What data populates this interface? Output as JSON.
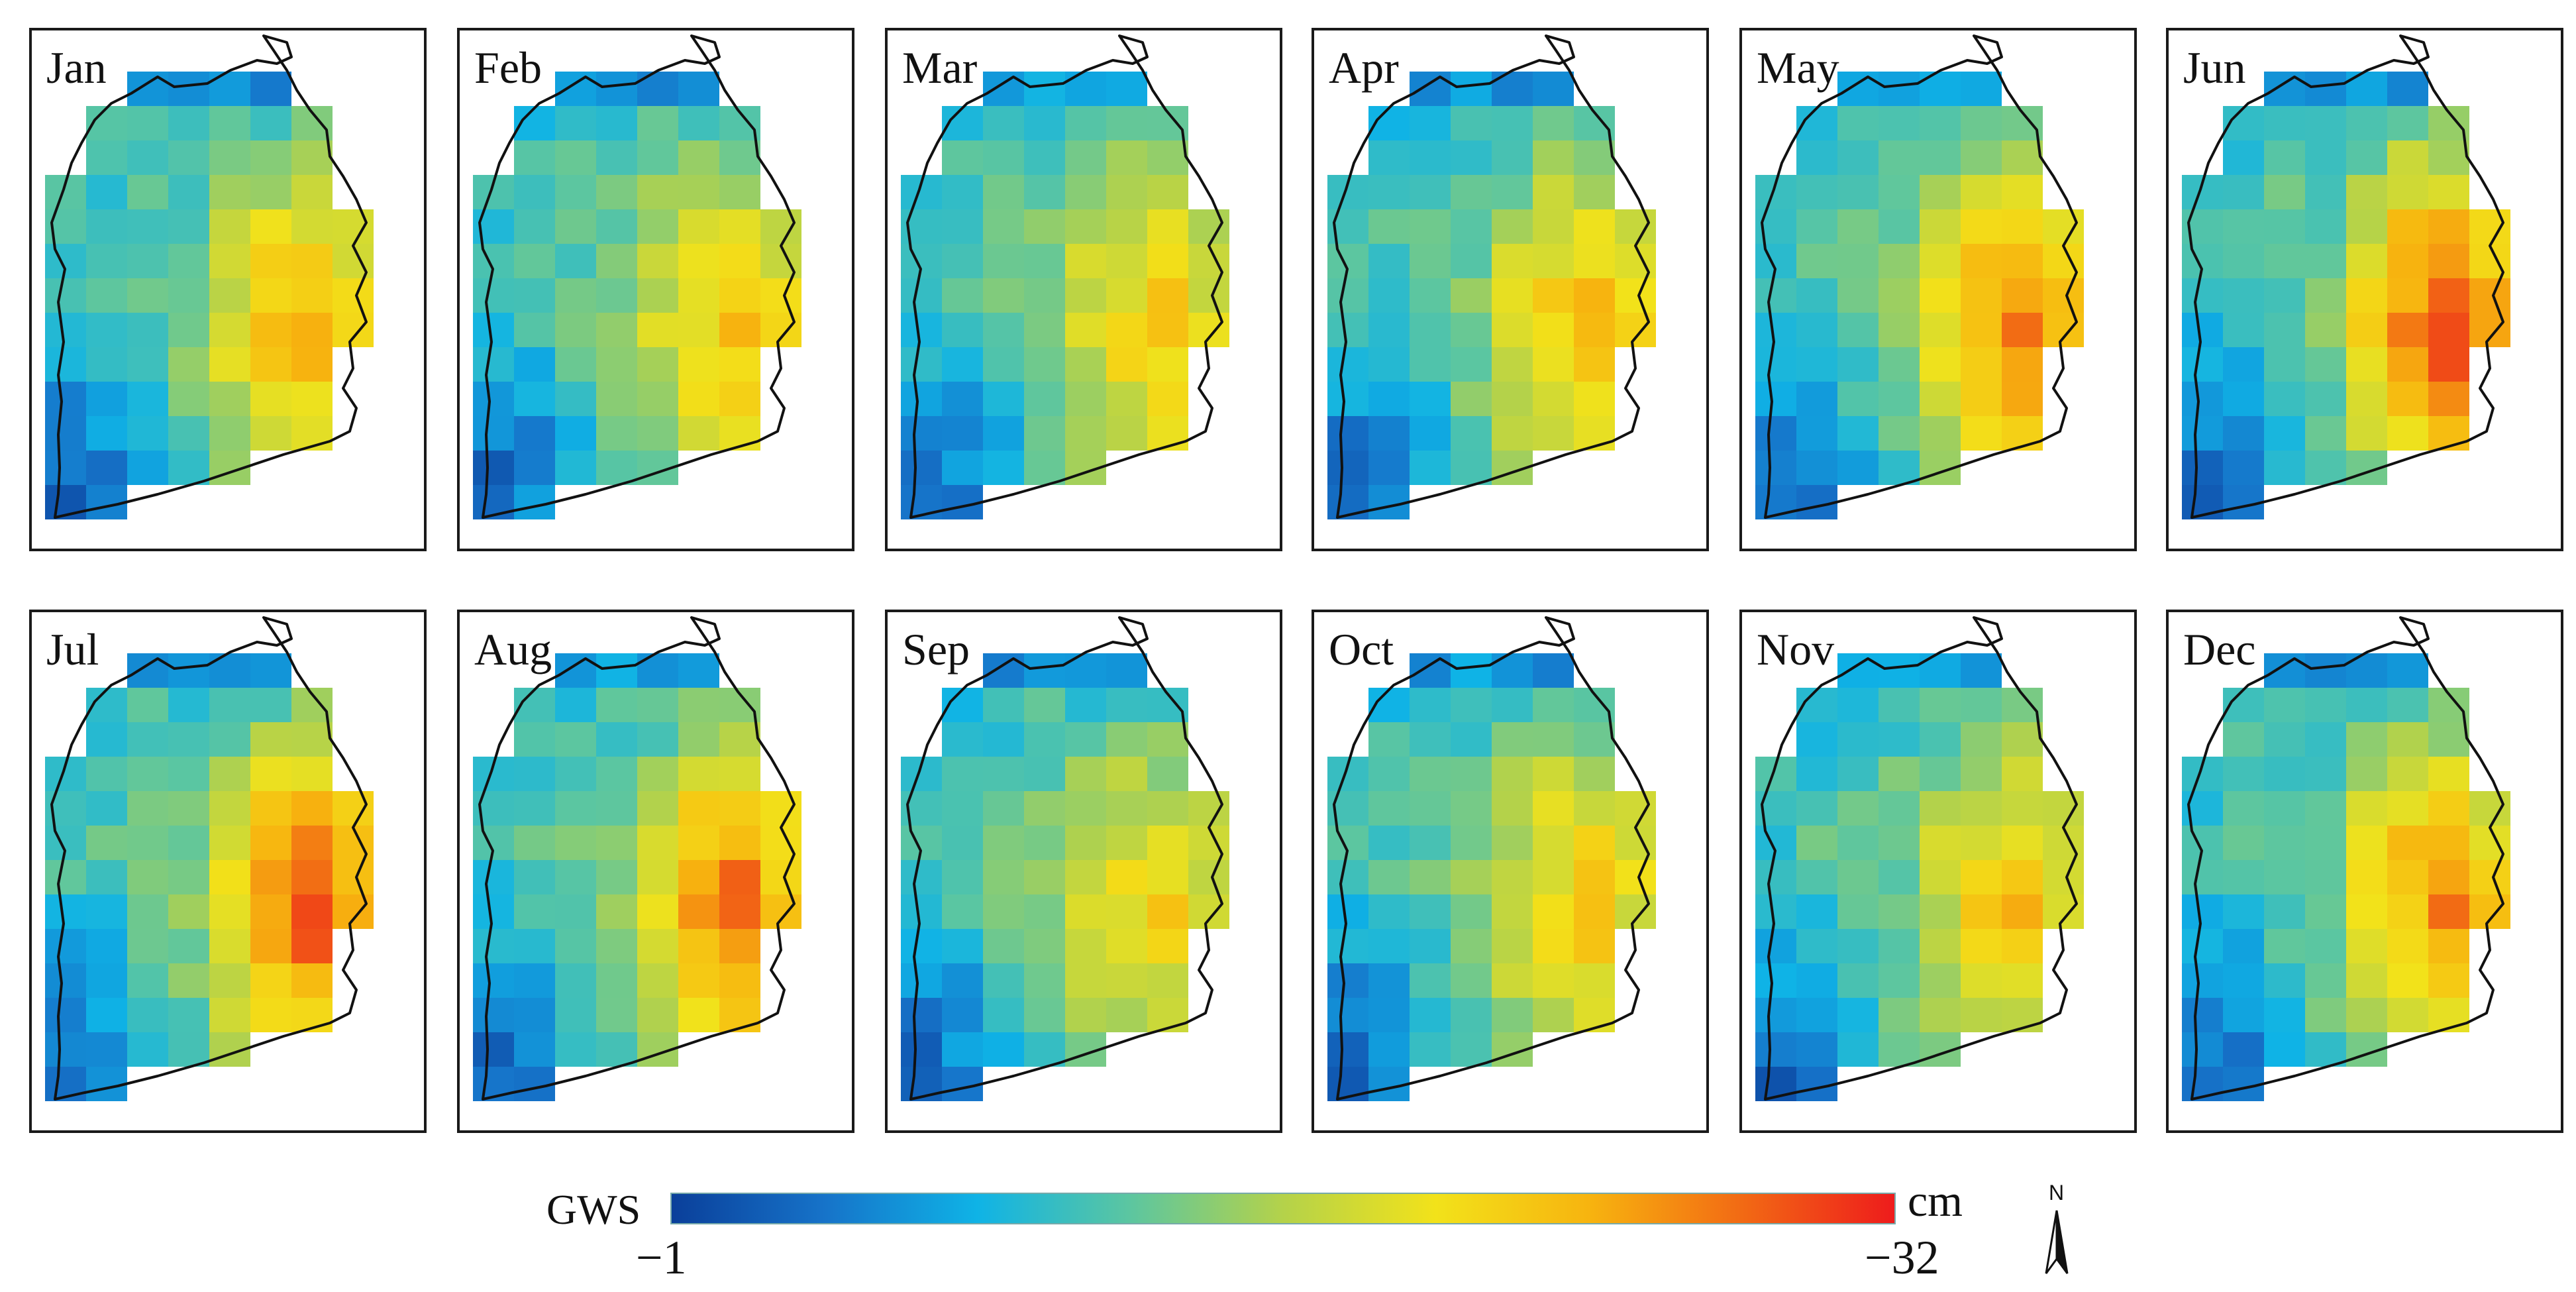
{
  "panels": [
    {
      "label": "Jan",
      "hotspot": 0.6
    },
    {
      "label": "Feb",
      "hotspot": 0.55
    },
    {
      "label": "Mar",
      "hotspot": 0.5
    },
    {
      "label": "Apr",
      "hotspot": 0.55
    },
    {
      "label": "May",
      "hotspot": 0.75
    },
    {
      "label": "Jun",
      "hotspot": 0.92
    },
    {
      "label": "Jul",
      "hotspot": 0.88
    },
    {
      "label": "Aug",
      "hotspot": 0.78
    },
    {
      "label": "Sep",
      "hotspot": 0.45
    },
    {
      "label": "Oct",
      "hotspot": 0.52
    },
    {
      "label": "Nov",
      "hotspot": 0.55
    },
    {
      "label": "Dec",
      "hotspot": 0.72
    }
  ],
  "legend": {
    "variable": "GWS",
    "unit": "cm",
    "min_label": "−1",
    "max_label": "−32",
    "colors": [
      "#0a3f9a",
      "#1673c9",
      "#0fb3e6",
      "#5cc6a0",
      "#b4d24a",
      "#f2e21a",
      "#f7b40f",
      "#f26a14",
      "#ee1c1c"
    ]
  },
  "north_arrow": {
    "letter": "N"
  }
}
